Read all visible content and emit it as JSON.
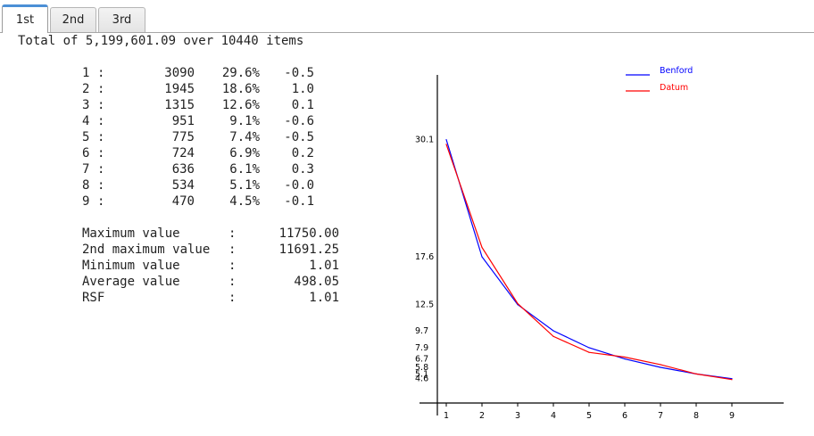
{
  "tabs": [
    {
      "label": "1st",
      "active": true
    },
    {
      "label": "2nd",
      "active": false
    },
    {
      "label": "3rd",
      "active": false
    }
  ],
  "summary": "Total of 5,199,601.09 over 10440 items",
  "digits": [
    {
      "digit": "1",
      "sep": ":",
      "count": "3090",
      "pct": "29.6%",
      "dev": "-0.5"
    },
    {
      "digit": "2",
      "sep": ":",
      "count": "1945",
      "pct": "18.6%",
      "dev": "1.0"
    },
    {
      "digit": "3",
      "sep": ":",
      "count": "1315",
      "pct": "12.6%",
      "dev": "0.1"
    },
    {
      "digit": "4",
      "sep": ":",
      "count": "951",
      "pct": "9.1%",
      "dev": "-0.6"
    },
    {
      "digit": "5",
      "sep": ":",
      "count": "775",
      "pct": "7.4%",
      "dev": "-0.5"
    },
    {
      "digit": "6",
      "sep": ":",
      "count": "724",
      "pct": "6.9%",
      "dev": "0.2"
    },
    {
      "digit": "7",
      "sep": ":",
      "count": "636",
      "pct": "6.1%",
      "dev": "0.3"
    },
    {
      "digit": "8",
      "sep": ":",
      "count": "534",
      "pct": "5.1%",
      "dev": "-0.0"
    },
    {
      "digit": "9",
      "sep": ":",
      "count": "470",
      "pct": "4.5%",
      "dev": "-0.1"
    }
  ],
  "stats": [
    {
      "label": "Maximum value",
      "sep": ":",
      "value": "11750.00"
    },
    {
      "label": "2nd maximum value",
      "sep": ":",
      "value": "11691.25"
    },
    {
      "label": "Minimum value",
      "sep": ":",
      "value": "1.01"
    },
    {
      "label": "Average value",
      "sep": ":",
      "value": "498.05"
    },
    {
      "label": "RSF",
      "sep": ":",
      "value": "1.01"
    }
  ],
  "chart_data": {
    "type": "line",
    "x": [
      1,
      2,
      3,
      4,
      5,
      6,
      7,
      8,
      9
    ],
    "x_tick_labels": [
      "1",
      "2",
      "3",
      "4",
      "5",
      "6",
      "7",
      "8",
      "9"
    ],
    "y_tick_labels": [
      "30.1",
      "17.6",
      "12.5",
      "9.7",
      "7.9",
      "6.7",
      "5.8",
      "5.1",
      "4.6"
    ],
    "y_ticks": [
      30.1,
      17.6,
      12.5,
      9.7,
      7.9,
      6.7,
      5.8,
      5.1,
      4.6
    ],
    "series": [
      {
        "name": "Benford",
        "color": "#0000ff",
        "values": [
          30.1,
          17.6,
          12.5,
          9.7,
          7.9,
          6.7,
          5.8,
          5.1,
          4.6
        ]
      },
      {
        "name": "Datum",
        "color": "#ff0000",
        "values": [
          29.6,
          18.6,
          12.6,
          9.1,
          7.4,
          6.9,
          6.1,
          5.1,
          4.5
        ]
      }
    ],
    "ylim": [
      2.0,
      37.0
    ],
    "grid": false,
    "legend": "top-right"
  }
}
